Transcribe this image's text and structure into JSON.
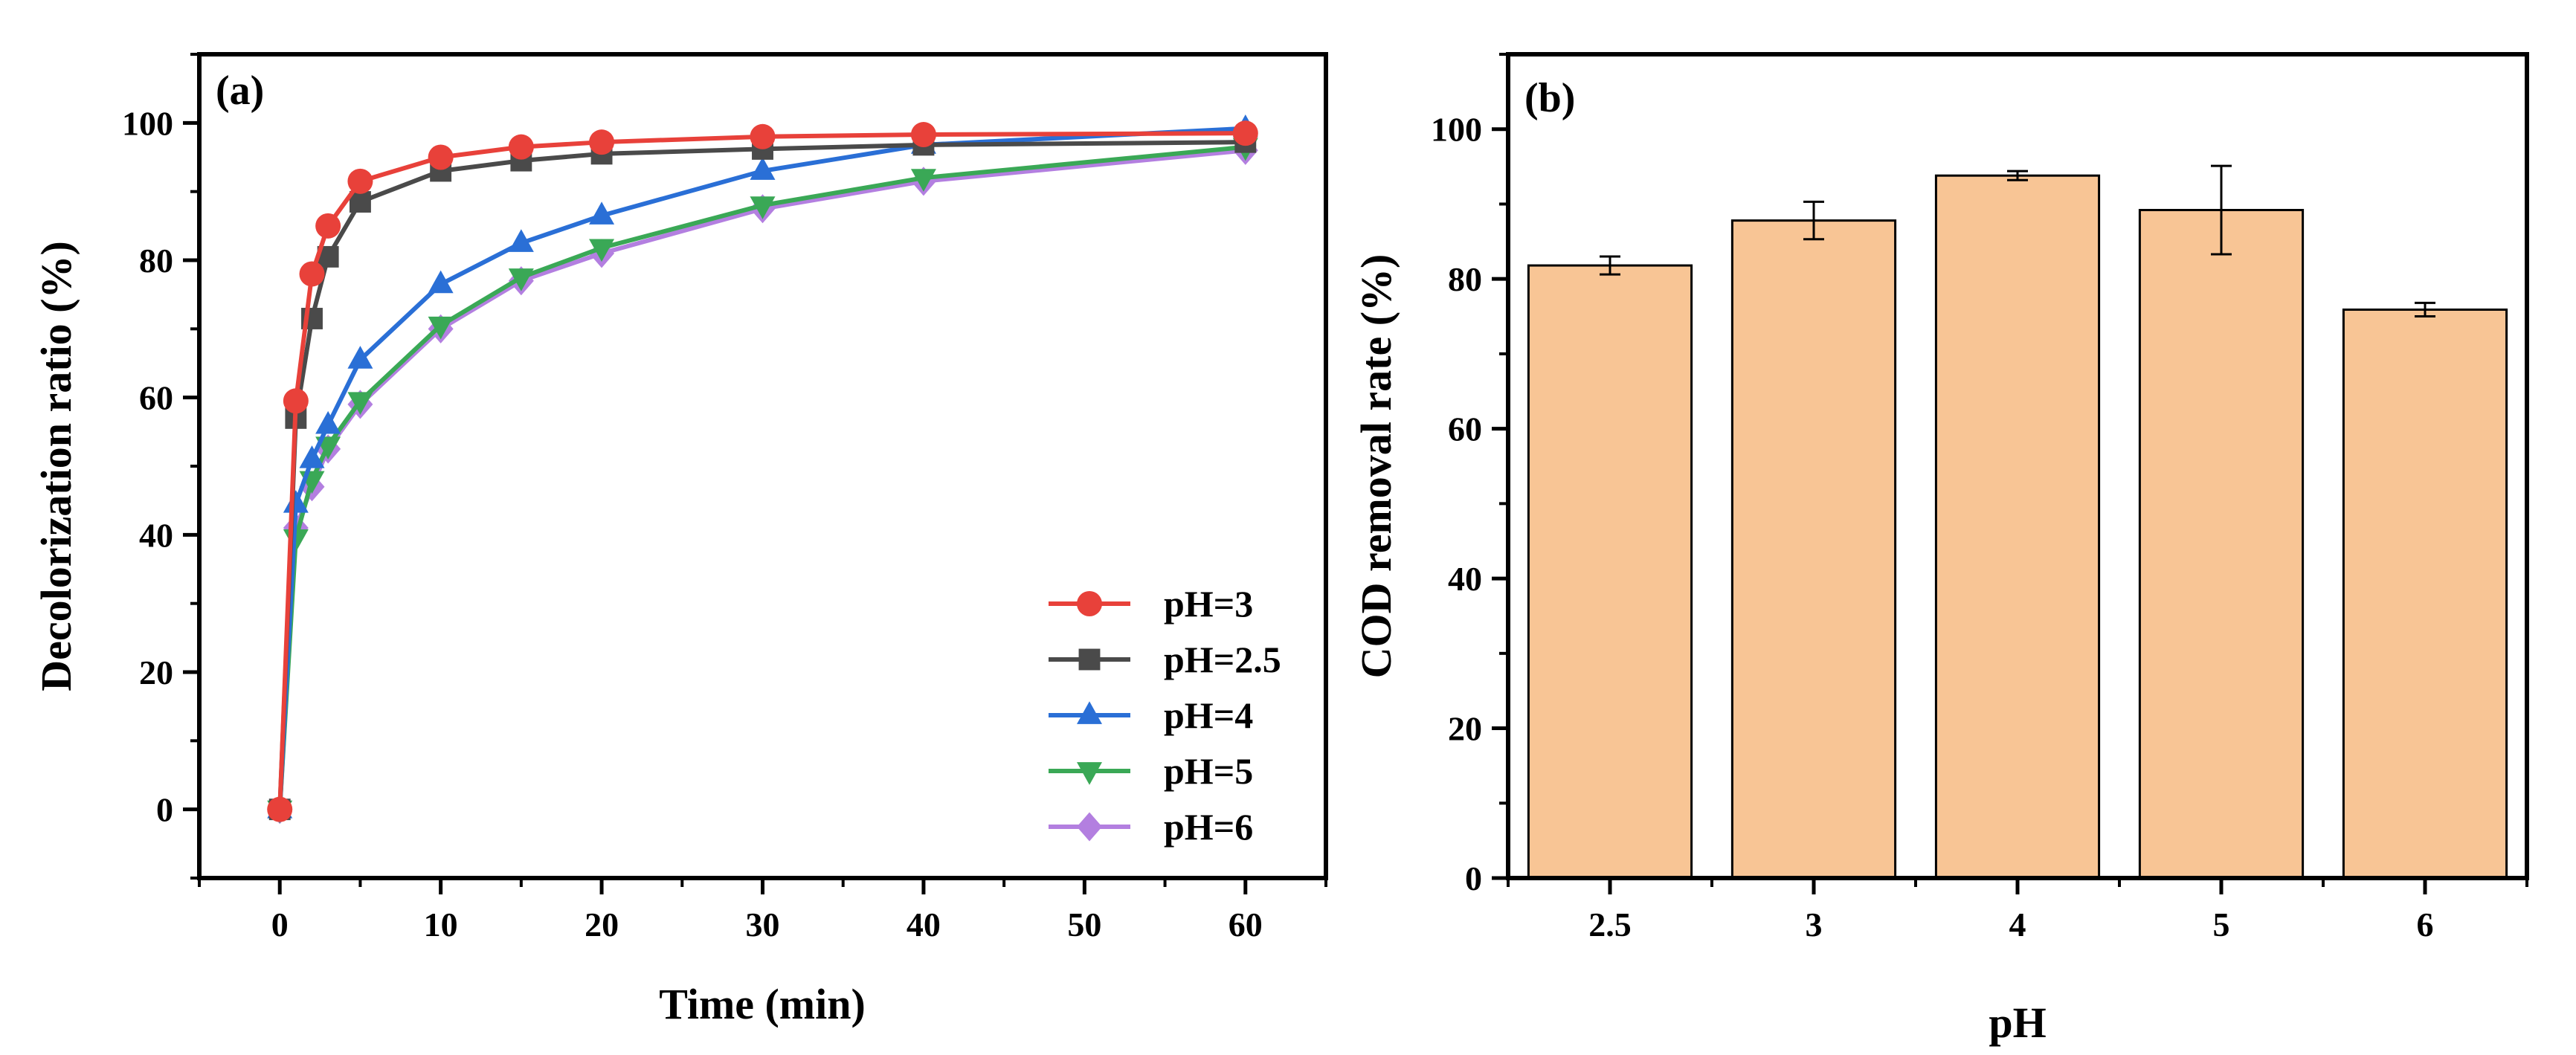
{
  "chart_data": [
    {
      "type": "line",
      "panel_label": "(a)",
      "xlabel": "Time (min)",
      "ylabel": "Decolorization ratio (%)",
      "xlim": [
        -5,
        65
      ],
      "ylim": [
        -10,
        110
      ],
      "xticks": [
        0,
        10,
        20,
        30,
        40,
        50,
        60
      ],
      "yticks": [
        0,
        20,
        40,
        60,
        80,
        100
      ],
      "legend_position": "bottom-right",
      "series": [
        {
          "name": "pH=3",
          "color": "#e8413a",
          "marker": "circle",
          "x": [
            0,
            1,
            2,
            3,
            5,
            10,
            15,
            20,
            30,
            40,
            60
          ],
          "y": [
            0,
            59.5,
            78,
            85,
            91.5,
            95,
            96.5,
            97.2,
            98,
            98.3,
            98.5
          ]
        },
        {
          "name": "pH=2.5",
          "color": "#4a4a4a",
          "marker": "square",
          "x": [
            0,
            1,
            2,
            3,
            5,
            10,
            15,
            20,
            30,
            40,
            60
          ],
          "y": [
            0,
            57,
            71.5,
            80.5,
            88.5,
            93,
            94.5,
            95.5,
            96.2,
            96.8,
            97.2
          ]
        },
        {
          "name": "pH=4",
          "color": "#2a6fd6",
          "marker": "triangle-up",
          "x": [
            0,
            1,
            2,
            3,
            5,
            10,
            15,
            20,
            30,
            40,
            60
          ],
          "y": [
            0,
            44.5,
            51,
            56,
            65.5,
            76.5,
            82.5,
            86.5,
            93,
            96.8,
            99.2
          ]
        },
        {
          "name": "pH=5",
          "color": "#3aa856",
          "marker": "triangle-down",
          "x": [
            0,
            1,
            2,
            3,
            5,
            10,
            15,
            20,
            30,
            40,
            60
          ],
          "y": [
            0,
            39.5,
            48,
            53,
            59.5,
            70.5,
            77.5,
            81.8,
            88,
            92,
            96.5
          ]
        },
        {
          "name": "pH=6",
          "color": "#b37fe0",
          "marker": "diamond",
          "x": [
            0,
            1,
            2,
            3,
            5,
            10,
            15,
            20,
            30,
            40,
            60
          ],
          "y": [
            0,
            41,
            47,
            52.5,
            59,
            70,
            77,
            81,
            87.5,
            91.5,
            96
          ]
        }
      ]
    },
    {
      "type": "bar",
      "panel_label": "(b)",
      "xlabel": "pH",
      "ylabel": "COD removal rate (%)",
      "categories": [
        "2.5",
        "3",
        "4",
        "5",
        "6"
      ],
      "values": [
        81.8,
        87.8,
        93.8,
        89.2,
        75.9
      ],
      "errors": [
        1.2,
        2.5,
        0.6,
        5.9,
        0.9
      ],
      "ylim": [
        0,
        110
      ],
      "yticks": [
        0,
        20,
        40,
        60,
        80,
        100
      ],
      "bar_color": "#f8c595"
    }
  ]
}
